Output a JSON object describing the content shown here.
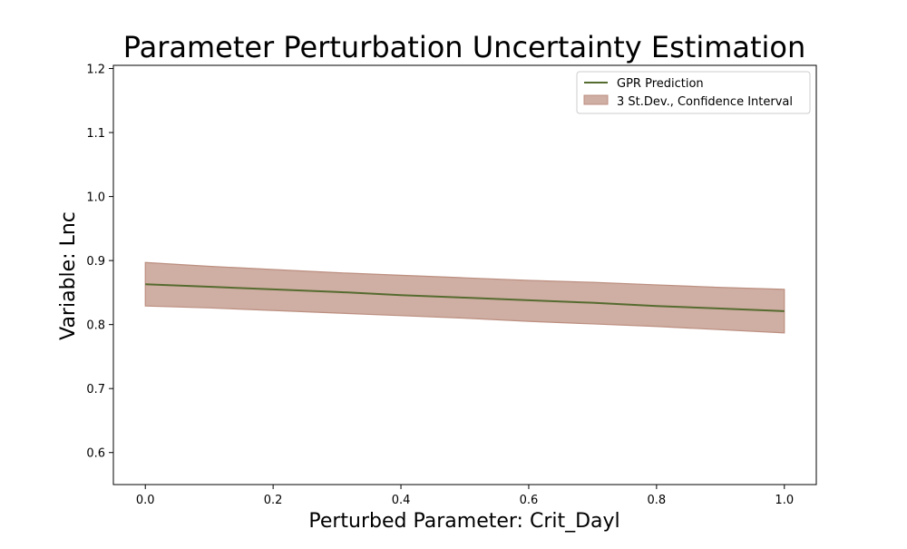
{
  "chart_data": {
    "type": "area",
    "title": "Parameter Perturbation Uncertainty Estimation",
    "xlabel": "Perturbed Parameter: Crit_Dayl",
    "ylabel": "Variable: Lnc",
    "xlim": [
      -0.05,
      1.05
    ],
    "ylim": [
      0.55,
      1.205
    ],
    "xticks": [
      0.0,
      0.2,
      0.4,
      0.6,
      0.8,
      1.0
    ],
    "xtick_labels": [
      "0.0",
      "0.2",
      "0.4",
      "0.6",
      "0.8",
      "1.0"
    ],
    "yticks": [
      0.6,
      0.7,
      0.8,
      0.9,
      1.0,
      1.1,
      1.2
    ],
    "ytick_labels": [
      "0.6",
      "0.7",
      "0.8",
      "0.9",
      "1.0",
      "1.1",
      "1.2"
    ],
    "grid": false,
    "legend_position": "top-right",
    "x": [
      0.0,
      0.1,
      0.2,
      0.3,
      0.4,
      0.5,
      0.6,
      0.7,
      0.8,
      0.9,
      1.0
    ],
    "series": [
      {
        "name": "GPR Prediction",
        "kind": "line",
        "color": "#556b2f",
        "values": [
          0.863,
          0.859,
          0.855,
          0.851,
          0.846,
          0.842,
          0.838,
          0.834,
          0.829,
          0.825,
          0.821
        ]
      },
      {
        "name": "3 St.Dev., Confidence Interval",
        "kind": "band",
        "color": "#bc8f80",
        "lower": [
          0.829,
          0.826,
          0.822,
          0.818,
          0.814,
          0.81,
          0.805,
          0.801,
          0.797,
          0.792,
          0.787
        ],
        "upper": [
          0.897,
          0.891,
          0.886,
          0.881,
          0.877,
          0.873,
          0.869,
          0.866,
          0.862,
          0.858,
          0.855
        ]
      }
    ]
  }
}
